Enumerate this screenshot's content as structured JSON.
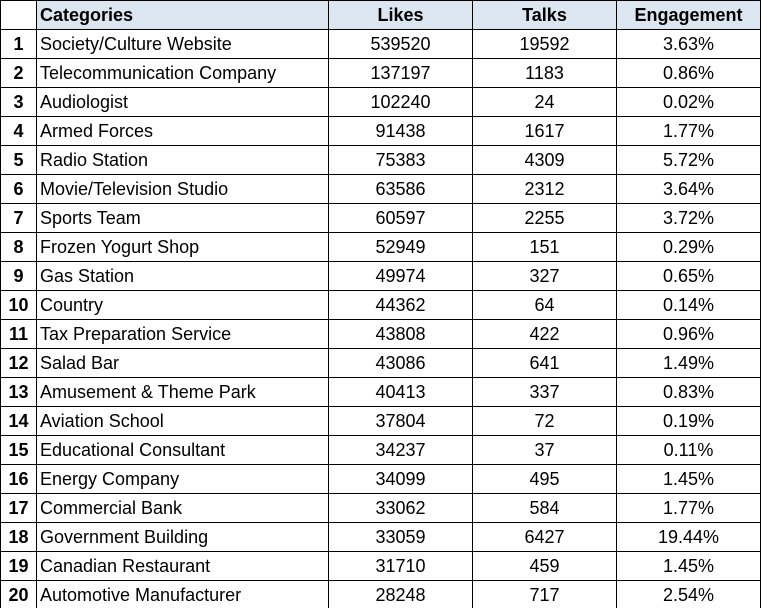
{
  "columns": {
    "categories": "Categories",
    "likes": "Likes",
    "talks": "Talks",
    "engagement": "Engagement"
  },
  "rows": [
    {
      "n": "1",
      "category": "Society/Culture Website",
      "likes": "539520",
      "talks": "19592",
      "engagement": "3.63%"
    },
    {
      "n": "2",
      "category": "Telecommunication Company",
      "likes": "137197",
      "talks": "1183",
      "engagement": "0.86%"
    },
    {
      "n": "3",
      "category": "Audiologist",
      "likes": "102240",
      "talks": "24",
      "engagement": "0.02%"
    },
    {
      "n": "4",
      "category": "Armed Forces",
      "likes": "91438",
      "talks": "1617",
      "engagement": "1.77%"
    },
    {
      "n": "5",
      "category": "Radio Station",
      "likes": "75383",
      "talks": "4309",
      "engagement": "5.72%"
    },
    {
      "n": "6",
      "category": "Movie/Television Studio",
      "likes": "63586",
      "talks": "2312",
      "engagement": "3.64%"
    },
    {
      "n": "7",
      "category": "Sports Team",
      "likes": "60597",
      "talks": "2255",
      "engagement": "3.72%"
    },
    {
      "n": "8",
      "category": "Frozen Yogurt Shop",
      "likes": "52949",
      "talks": "151",
      "engagement": "0.29%"
    },
    {
      "n": "9",
      "category": "Gas Station",
      "likes": "49974",
      "talks": "327",
      "engagement": "0.65%"
    },
    {
      "n": "10",
      "category": "Country",
      "likes": "44362",
      "talks": "64",
      "engagement": "0.14%"
    },
    {
      "n": "11",
      "category": "Tax Preparation Service",
      "likes": "43808",
      "talks": "422",
      "engagement": "0.96%"
    },
    {
      "n": "12",
      "category": "Salad Bar",
      "likes": "43086",
      "talks": "641",
      "engagement": "1.49%"
    },
    {
      "n": "13",
      "category": "Amusement & Theme Park",
      "likes": "40413",
      "talks": "337",
      "engagement": "0.83%"
    },
    {
      "n": "14",
      "category": "Aviation School",
      "likes": "37804",
      "talks": "72",
      "engagement": "0.19%"
    },
    {
      "n": "15",
      "category": "Educational Consultant",
      "likes": "34237",
      "talks": "37",
      "engagement": "0.11%"
    },
    {
      "n": "16",
      "category": "Energy Company",
      "likes": "34099",
      "talks": "495",
      "engagement": "1.45%"
    },
    {
      "n": "17",
      "category": "Commercial Bank",
      "likes": "33062",
      "talks": "584",
      "engagement": "1.77%"
    },
    {
      "n": "18",
      "category": "Government Building",
      "likes": "33059",
      "talks": "6427",
      "engagement": "19.44%"
    },
    {
      "n": "19",
      "category": "Canadian Restaurant",
      "likes": "31710",
      "talks": "459",
      "engagement": "1.45%"
    },
    {
      "n": "20",
      "category": "Automotive Manufacturer",
      "likes": "28248",
      "talks": "717",
      "engagement": "2.54%"
    }
  ],
  "colors": {
    "header_fill": "#dce6f1",
    "grid": "#000000",
    "text": "#000000"
  }
}
